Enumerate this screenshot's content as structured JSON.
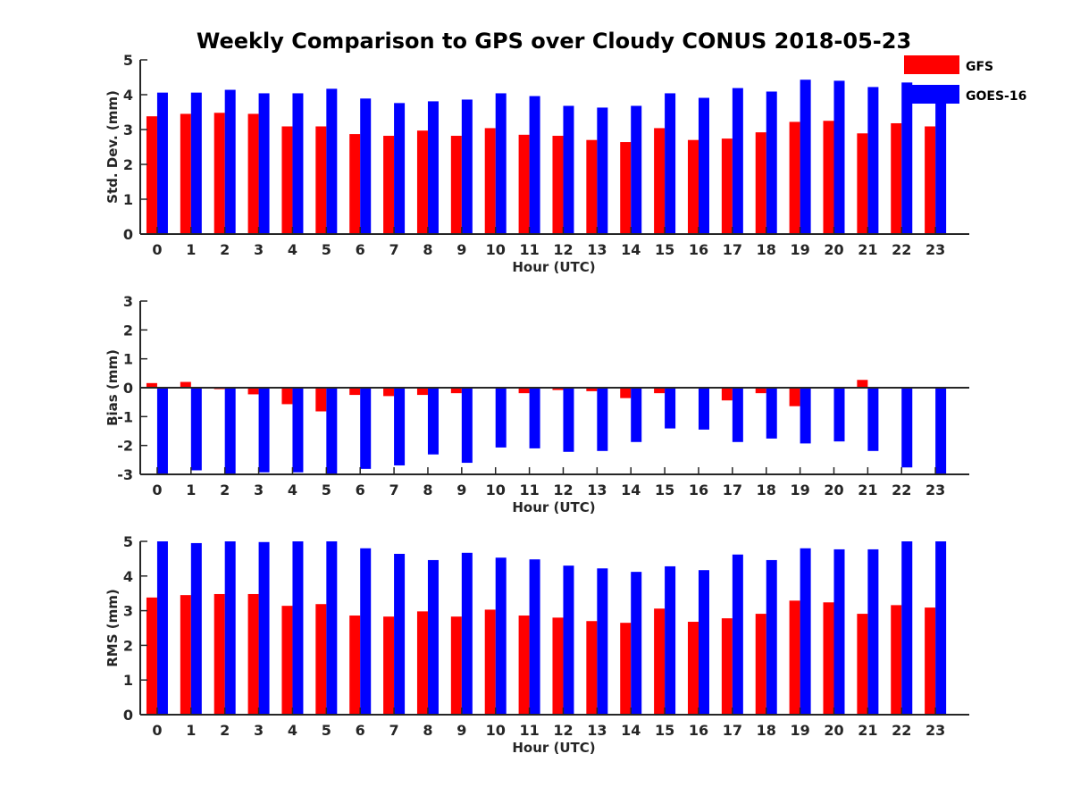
{
  "title": "Weekly Comparison to GPS over Cloudy CONUS 2018-05-23",
  "colors": {
    "GFS": "#ff0000",
    "GOES-16": "#0000ff"
  },
  "legend": {
    "placement": "top-right",
    "entries": [
      "GFS",
      "GOES-16"
    ]
  },
  "chart_data": [
    {
      "type": "bar",
      "xlabel": "Hour (UTC)",
      "ylabel": "Std. Dev. (mm)",
      "ylim": [
        0,
        5
      ],
      "yticks": [
        0,
        1,
        2,
        3,
        4,
        5
      ],
      "categories": [
        "0",
        "1",
        "2",
        "3",
        "4",
        "5",
        "6",
        "7",
        "8",
        "9",
        "10",
        "11",
        "12",
        "13",
        "14",
        "15",
        "16",
        "17",
        "18",
        "19",
        "20",
        "21",
        "22",
        "23"
      ],
      "series": [
        {
          "name": "GFS",
          "color": "#ff0000",
          "values": [
            3.38,
            3.45,
            3.48,
            3.45,
            3.09,
            3.09,
            2.87,
            2.82,
            2.97,
            2.82,
            3.04,
            2.85,
            2.82,
            2.7,
            2.64,
            3.04,
            2.7,
            2.74,
            2.92,
            3.22,
            3.25,
            2.89,
            3.18,
            3.09
          ]
        },
        {
          "name": "GOES-16",
          "color": "#0000ff",
          "values": [
            4.06,
            4.06,
            4.14,
            4.04,
            4.04,
            4.17,
            3.89,
            3.76,
            3.81,
            3.86,
            4.04,
            3.96,
            3.68,
            3.63,
            3.68,
            4.04,
            3.91,
            4.19,
            4.09,
            4.43,
            4.4,
            4.22,
            4.35,
            3.75
          ]
        }
      ]
    },
    {
      "type": "bar",
      "xlabel": "Hour (UTC)",
      "ylabel": "Bias (mm)",
      "ylim": [
        -3,
        3
      ],
      "yticks": [
        -3,
        -2,
        -1,
        0,
        1,
        2,
        3
      ],
      "categories": [
        "0",
        "1",
        "2",
        "3",
        "4",
        "5",
        "6",
        "7",
        "8",
        "9",
        "10",
        "11",
        "12",
        "13",
        "14",
        "15",
        "16",
        "17",
        "18",
        "19",
        "20",
        "21",
        "22",
        "23"
      ],
      "series": [
        {
          "name": "GFS",
          "color": "#ff0000",
          "values": [
            0.16,
            0.2,
            -0.05,
            -0.23,
            -0.57,
            -0.82,
            -0.25,
            -0.29,
            -0.25,
            -0.19,
            -0.03,
            -0.19,
            -0.08,
            -0.12,
            -0.36,
            -0.19,
            0.0,
            -0.44,
            -0.19,
            -0.64,
            0.0,
            0.27,
            0.0,
            0.03
          ]
        },
        {
          "name": "GOES-16",
          "color": "#0000ff",
          "values": [
            -3.0,
            -2.86,
            -3.0,
            -2.93,
            -2.93,
            -3.0,
            -2.81,
            -2.69,
            -2.31,
            -2.6,
            -2.07,
            -2.1,
            -2.22,
            -2.19,
            -1.88,
            -1.41,
            -1.45,
            -1.88,
            -1.76,
            -1.93,
            -1.86,
            -2.19,
            -2.76,
            -3.0
          ]
        }
      ]
    },
    {
      "type": "bar",
      "xlabel": "Hour (UTC)",
      "ylabel": "RMS (mm)",
      "ylim": [
        0,
        5
      ],
      "yticks": [
        0,
        1,
        2,
        3,
        4,
        5
      ],
      "categories": [
        "0",
        "1",
        "2",
        "3",
        "4",
        "5",
        "6",
        "7",
        "8",
        "9",
        "10",
        "11",
        "12",
        "13",
        "14",
        "15",
        "16",
        "17",
        "18",
        "19",
        "20",
        "21",
        "22",
        "23"
      ],
      "series": [
        {
          "name": "GFS",
          "color": "#ff0000",
          "values": [
            3.38,
            3.45,
            3.48,
            3.48,
            3.14,
            3.19,
            2.86,
            2.83,
            2.98,
            2.83,
            3.03,
            2.86,
            2.8,
            2.7,
            2.65,
            3.06,
            2.68,
            2.78,
            2.91,
            3.29,
            3.24,
            2.91,
            3.16,
            3.09
          ]
        },
        {
          "name": "GOES-16",
          "color": "#0000ff",
          "values": [
            5.0,
            4.95,
            5.0,
            4.98,
            5.0,
            5.0,
            4.8,
            4.64,
            4.46,
            4.67,
            4.53,
            4.48,
            4.3,
            4.22,
            4.12,
            4.28,
            4.17,
            4.62,
            4.46,
            4.8,
            4.77,
            4.77,
            5.0,
            5.0
          ]
        }
      ]
    }
  ]
}
